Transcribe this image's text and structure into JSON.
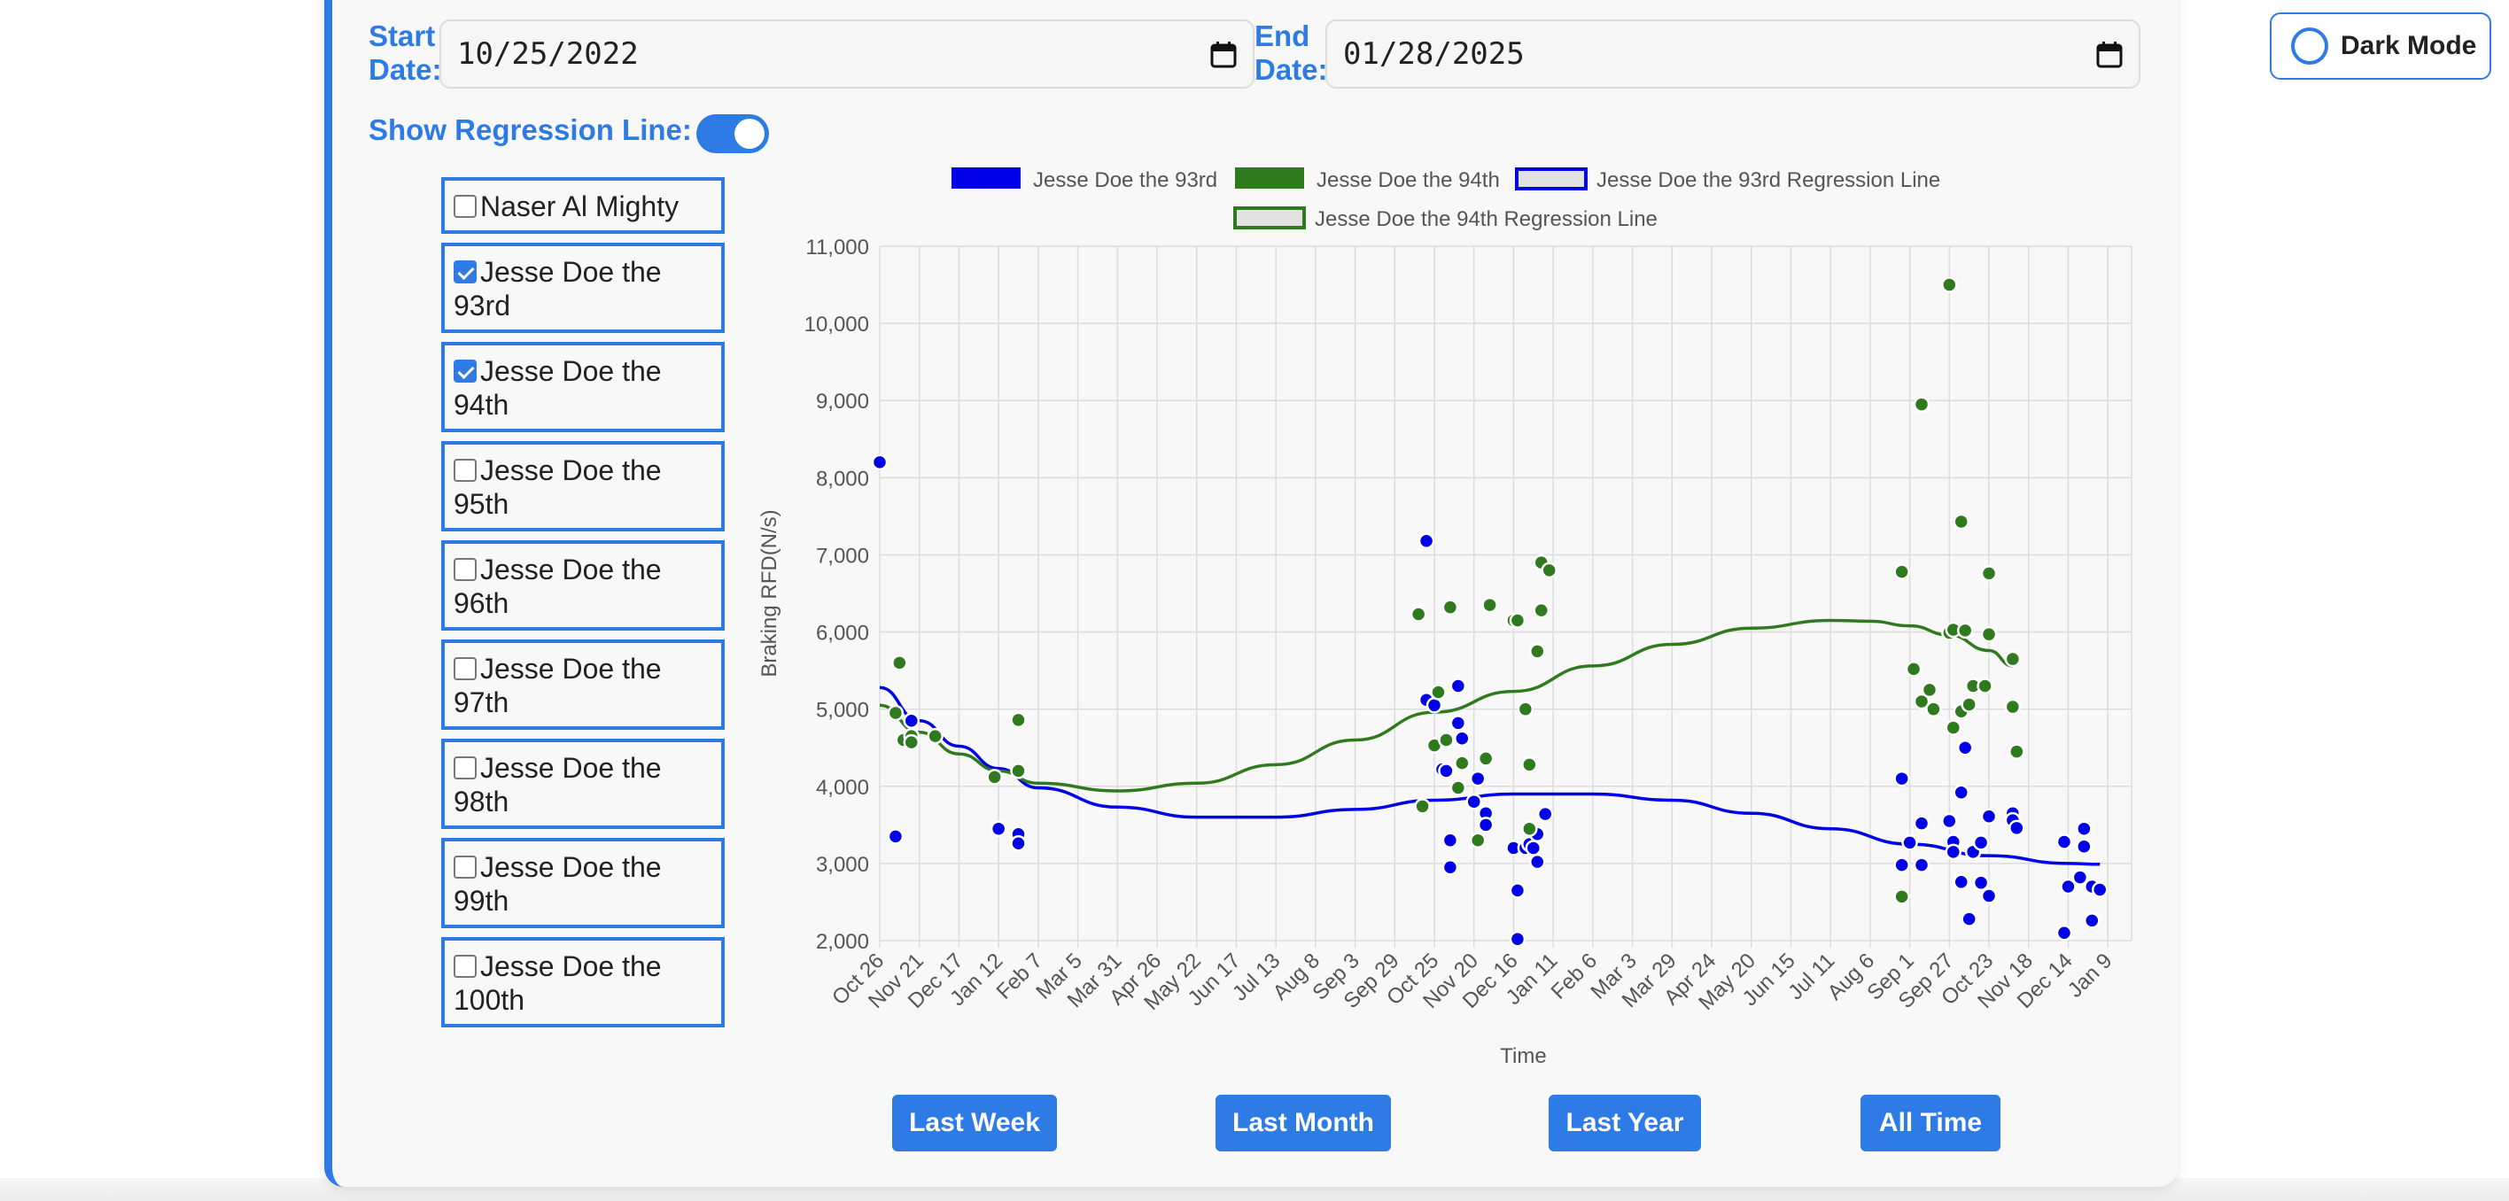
{
  "filters": {
    "start_label_1": "Start",
    "start_label_2": "Date:",
    "start_value": "10/25/2022",
    "end_label_1": "End",
    "end_label_2": "Date:",
    "end_value": "01/28/2025",
    "regression_label": "Show Regression Line:",
    "regression_on": true
  },
  "athletes": [
    {
      "label": "Naser Al Mighty",
      "checked": false
    },
    {
      "label": "Jesse Doe the 93rd",
      "checked": true
    },
    {
      "label": "Jesse Doe the 94th",
      "checked": true
    },
    {
      "label": "Jesse Doe the 95th",
      "checked": false
    },
    {
      "label": "Jesse Doe the 96th",
      "checked": false
    },
    {
      "label": "Jesse Doe the 97th",
      "checked": false
    },
    {
      "label": "Jesse Doe the 98th",
      "checked": false
    },
    {
      "label": "Jesse Doe the 99th",
      "checked": false
    },
    {
      "label": "Jesse Doe the 100th",
      "checked": false
    }
  ],
  "range_buttons": {
    "last_week": "Last Week",
    "last_month": "Last Month",
    "last_year": "Last Year",
    "all_time": "All Time"
  },
  "dark_mode": {
    "label": "Dark Mode"
  },
  "chart_data": {
    "type": "scatter",
    "xlabel": "Time",
    "ylabel": "Braking RFD(N/s)",
    "ylim": [
      2000,
      11000
    ],
    "y_ticks": [
      "2,000",
      "3,000",
      "4,000",
      "5,000",
      "6,000",
      "7,000",
      "8,000",
      "9,000",
      "10,000",
      "11,000"
    ],
    "x_ticks": [
      "Oct 26",
      "Nov 21",
      "Dec 17",
      "Jan 12",
      "Feb 7",
      "Mar 5",
      "Mar 31",
      "Apr 26",
      "May 22",
      "Jun 17",
      "Jul 13",
      "Aug 8",
      "Sep 3",
      "Sep 29",
      "Oct 25",
      "Nov 20",
      "Dec 16",
      "Jan 11",
      "Feb 6",
      "Mar 3",
      "Mar 29",
      "Apr 24",
      "May 20",
      "Jun 15",
      "Jul 11",
      "Aug 6",
      "Sep 1",
      "Sep 27",
      "Oct 23",
      "Nov 18",
      "Dec 14",
      "Jan 9"
    ],
    "grid": true,
    "legend_position": "top",
    "legend": [
      {
        "label": "Jesse Doe the 93rd",
        "kind": "fill",
        "color": "#0000e6"
      },
      {
        "label": "Jesse Doe the 94th",
        "kind": "fill",
        "color": "#2f7a1f"
      },
      {
        "label": "Jesse Doe the 93rd Regression Line",
        "kind": "outline",
        "color": "#0000e6"
      },
      {
        "label": "Jesse Doe the 94th Regression Line",
        "kind": "outline",
        "color": "#2f7a1f"
      }
    ],
    "series": [
      {
        "name": "Jesse Doe the 93rd",
        "color": "#0000e6",
        "points": [
          [
            0.0,
            8200
          ],
          [
            0.4,
            3350
          ],
          [
            0.8,
            4850
          ],
          [
            3.0,
            3450
          ],
          [
            3.5,
            3380
          ],
          [
            3.5,
            3260
          ],
          [
            13.8,
            7180
          ],
          [
            13.8,
            5120
          ],
          [
            14.0,
            5050
          ],
          [
            14.2,
            4220
          ],
          [
            14.3,
            4200
          ],
          [
            14.4,
            3300
          ],
          [
            14.4,
            2950
          ],
          [
            14.6,
            5300
          ],
          [
            14.6,
            4820
          ],
          [
            14.7,
            4620
          ],
          [
            15.0,
            3800
          ],
          [
            15.1,
            4100
          ],
          [
            15.3,
            3650
          ],
          [
            15.3,
            3500
          ],
          [
            16.0,
            3200
          ],
          [
            16.1,
            2650
          ],
          [
            16.1,
            2020
          ],
          [
            16.3,
            3200
          ],
          [
            16.4,
            3250
          ],
          [
            16.5,
            3200
          ],
          [
            16.6,
            3380
          ],
          [
            16.6,
            3020
          ],
          [
            16.8,
            3640
          ],
          [
            25.8,
            4100
          ],
          [
            25.8,
            2980
          ],
          [
            26.0,
            3270
          ],
          [
            26.3,
            3520
          ],
          [
            26.3,
            2980
          ],
          [
            27.0,
            3550
          ],
          [
            27.1,
            3280
          ],
          [
            27.1,
            3150
          ],
          [
            27.3,
            3920
          ],
          [
            27.3,
            2760
          ],
          [
            27.4,
            4500
          ],
          [
            27.5,
            2280
          ],
          [
            27.6,
            3150
          ],
          [
            27.8,
            2750
          ],
          [
            27.8,
            3270
          ],
          [
            28.0,
            3610
          ],
          [
            28.0,
            2580
          ],
          [
            28.6,
            3650
          ],
          [
            28.6,
            3560
          ],
          [
            28.7,
            3460
          ],
          [
            29.9,
            3280
          ],
          [
            29.9,
            2100
          ],
          [
            30.0,
            2700
          ],
          [
            30.3,
            2820
          ],
          [
            30.4,
            3220
          ],
          [
            30.4,
            3450
          ],
          [
            30.6,
            2260
          ],
          [
            30.6,
            2700
          ],
          [
            30.8,
            2660
          ]
        ]
      },
      {
        "name": "Jesse Doe the 94th",
        "color": "#2f7a1f",
        "points": [
          [
            0.4,
            4950
          ],
          [
            0.5,
            5600
          ],
          [
            0.6,
            4600
          ],
          [
            0.8,
            4650
          ],
          [
            0.8,
            4570
          ],
          [
            1.4,
            4650
          ],
          [
            2.9,
            4120
          ],
          [
            3.5,
            4860
          ],
          [
            3.5,
            4200
          ],
          [
            13.6,
            6230
          ],
          [
            13.7,
            3740
          ],
          [
            14.0,
            4530
          ],
          [
            14.1,
            5220
          ],
          [
            14.3,
            4600
          ],
          [
            14.4,
            6320
          ],
          [
            14.6,
            3980
          ],
          [
            14.7,
            4300
          ],
          [
            15.1,
            3300
          ],
          [
            15.3,
            4360
          ],
          [
            15.4,
            6350
          ],
          [
            16.0,
            6150
          ],
          [
            16.1,
            6150
          ],
          [
            16.3,
            5000
          ],
          [
            16.4,
            3450
          ],
          [
            16.4,
            4280
          ],
          [
            16.6,
            5750
          ],
          [
            16.7,
            6280
          ],
          [
            16.7,
            6900
          ],
          [
            16.9,
            6800
          ],
          [
            25.8,
            6780
          ],
          [
            25.8,
            2570
          ],
          [
            26.1,
            5520
          ],
          [
            26.3,
            5100
          ],
          [
            26.5,
            5250
          ],
          [
            26.6,
            5000
          ],
          [
            26.3,
            8950
          ],
          [
            27.0,
            10500
          ],
          [
            27.0,
            5990
          ],
          [
            27.1,
            6030
          ],
          [
            27.1,
            4760
          ],
          [
            27.3,
            7430
          ],
          [
            27.3,
            4970
          ],
          [
            27.4,
            6020
          ],
          [
            27.5,
            5060
          ],
          [
            27.6,
            5300
          ],
          [
            27.9,
            5300
          ],
          [
            28.0,
            5970
          ],
          [
            28.0,
            6760
          ],
          [
            28.6,
            5650
          ],
          [
            28.6,
            5030
          ],
          [
            28.7,
            4450
          ]
        ]
      }
    ],
    "regressions": [
      {
        "name": "Jesse Doe the 93rd Regression Line",
        "color": "#0000e6",
        "points": [
          [
            0,
            5280
          ],
          [
            1,
            4850
          ],
          [
            2,
            4520
          ],
          [
            3,
            4230
          ],
          [
            4,
            3980
          ],
          [
            6,
            3730
          ],
          [
            8,
            3600
          ],
          [
            10,
            3600
          ],
          [
            12,
            3700
          ],
          [
            14,
            3820
          ],
          [
            16,
            3900
          ],
          [
            18,
            3900
          ],
          [
            20,
            3820
          ],
          [
            22,
            3650
          ],
          [
            24,
            3450
          ],
          [
            26,
            3250
          ],
          [
            28,
            3100
          ],
          [
            30,
            3000
          ],
          [
            30.8,
            2990
          ]
        ]
      },
      {
        "name": "Jesse Doe the 94th Regression Line",
        "color": "#2f7a1f",
        "points": [
          [
            0,
            5050
          ],
          [
            1,
            4700
          ],
          [
            2,
            4420
          ],
          [
            3,
            4200
          ],
          [
            4,
            4040
          ],
          [
            6,
            3940
          ],
          [
            8,
            4040
          ],
          [
            10,
            4280
          ],
          [
            12,
            4600
          ],
          [
            14,
            4960
          ],
          [
            16,
            5230
          ],
          [
            18,
            5560
          ],
          [
            20,
            5840
          ],
          [
            22,
            6050
          ],
          [
            24,
            6150
          ],
          [
            25,
            6140
          ],
          [
            26,
            6080
          ],
          [
            27,
            5960
          ],
          [
            28,
            5760
          ],
          [
            28.6,
            5560
          ]
        ]
      }
    ]
  }
}
